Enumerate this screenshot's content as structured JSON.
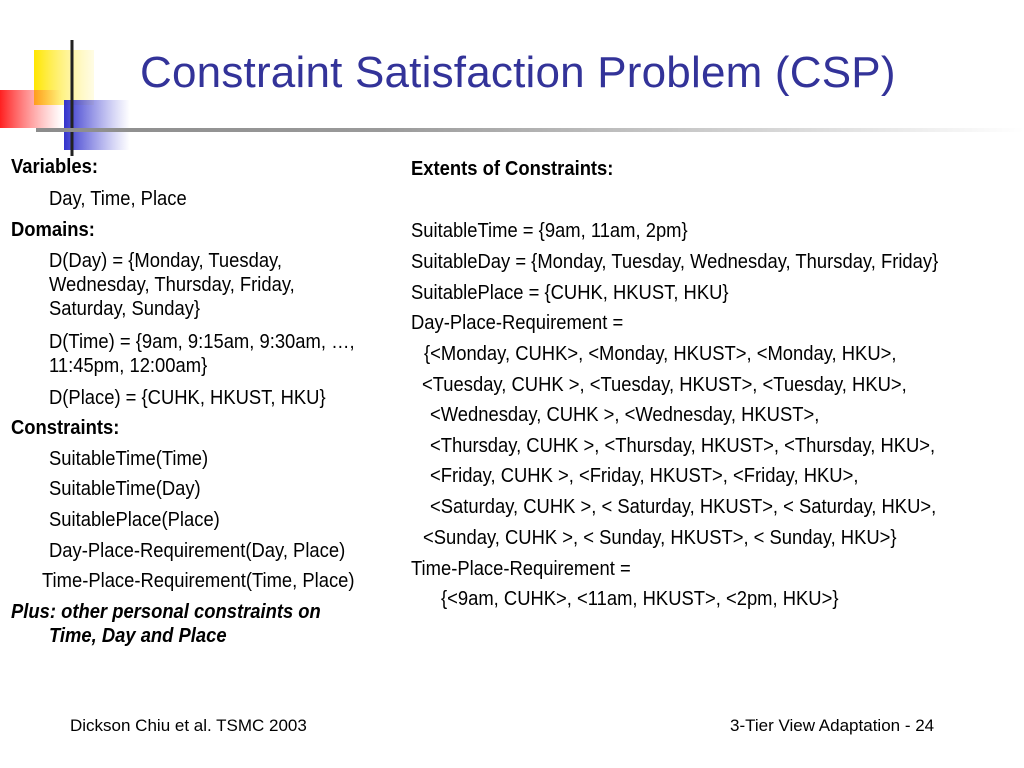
{
  "slide": {
    "title": "Constraint Satisfaction Problem (CSP)",
    "left_column": {
      "variables_heading": "Variables:",
      "variables_value": "Day, Time, Place",
      "domains_heading": "Domains:",
      "domain_day_line1": "D(Day) = {Monday, Tuesday,",
      "domain_day_line2": "Wednesday, Thursday, Friday,",
      "domain_day_line3": "Saturday, Sunday}",
      "domain_time_line1": "D(Time) = {9am, 9:15am, 9:30am, …,",
      "domain_time_line2": "11:45pm, 12:00am}",
      "domain_place": "D(Place) = {CUHK, HKUST, HKU}",
      "constraints_heading": "Constraints:",
      "constraints": [
        "SuitableTime(Time)",
        "SuitableTime(Day)",
        "SuitablePlace(Place)",
        "Day-Place-Requirement(Day, Place)",
        "Time-Place-Requirement(Time, Place)"
      ],
      "plus_line1": "Plus: other personal constraints on",
      "plus_line2": "Time, Day and Place"
    },
    "right_column": {
      "heading": "Extents of Constraints:",
      "suitable_time": "SuitableTime = {9am, 11am, 2pm}",
      "suitable_day": "SuitableDay = {Monday, Tuesday, Wednesday, Thursday, Friday}",
      "suitable_place": "SuitablePlace = {CUHK, HKUST, HKU}",
      "dpr_heading": "Day-Place-Requirement =",
      "dpr_lines": [
        "{<Monday, CUHK>, <Monday, HKUST>, <Monday, HKU>,",
        "<Tuesday, CUHK >, <Tuesday, HKUST>, <Tuesday, HKU>,",
        "<Wednesday, CUHK >, <Wednesday, HKUST>,",
        "<Thursday, CUHK >, <Thursday, HKUST>, <Thursday, HKU>,",
        "<Friday, CUHK >, <Friday, HKUST>, <Friday, HKU>,",
        "<Saturday, CUHK >, < Saturday, HKUST>, < Saturday, HKU>,",
        "<Sunday, CUHK >, < Sunday, HKUST>, < Sunday, HKU>}"
      ],
      "tpr_heading": "Time-Place-Requirement =",
      "tpr_value": "{<9am, CUHK>, <11am, HKUST>, <2pm, HKU>}"
    },
    "footer": {
      "left": "Dickson Chiu et al. TSMC 2003",
      "right": "3-Tier View Adaptation - 24"
    },
    "colors": {
      "title": "#333399",
      "deco_yellow": "#FFE500",
      "deco_blue": "#3333CC",
      "deco_red": "#FF3333"
    }
  }
}
